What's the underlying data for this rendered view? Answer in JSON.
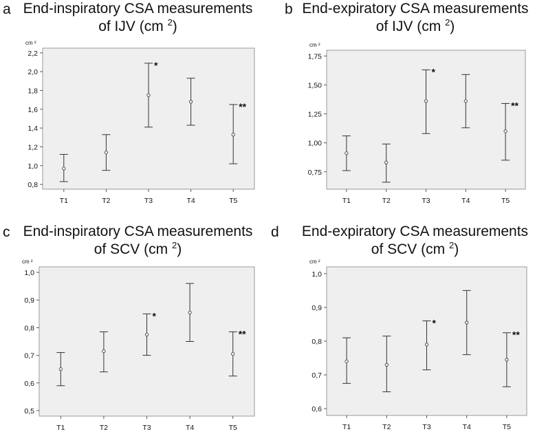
{
  "chart_data": [
    {
      "type": "errorbar",
      "panel_letter": "a",
      "title_line1": "End-inspiratory CSA measurements",
      "title_line2_pre": "of IJV (cm",
      "title_sup": "2",
      "title_line2_post": ")",
      "unit_label": "cm ²",
      "categories": [
        "T1",
        "T2",
        "T3",
        "T4",
        "T5"
      ],
      "means": [
        0.97,
        1.14,
        1.75,
        1.68,
        1.33
      ],
      "upper": [
        1.12,
        1.33,
        2.09,
        1.93,
        1.65
      ],
      "lower": [
        0.83,
        0.95,
        1.41,
        1.43,
        1.02
      ],
      "ylim": [
        0.75,
        2.25
      ],
      "yticks": [
        0.8,
        1.0,
        1.2,
        1.4,
        1.6,
        1.8,
        2.0,
        2.2
      ],
      "yticklabels": [
        "0,8",
        "1,0",
        "1,2",
        "1,4",
        "1,6",
        "1,8",
        "2,0",
        "2,2"
      ],
      "annotations": [
        {
          "category": "T3",
          "text": "*"
        },
        {
          "category": "T5",
          "text": "**"
        }
      ]
    },
    {
      "type": "errorbar",
      "panel_letter": "b",
      "title_line1": "End-expiratory CSA measurements",
      "title_line2_pre": "of IJV (cm",
      "title_sup": "2",
      "title_line2_post": ")",
      "unit_label": "cm ²",
      "categories": [
        "T1",
        "T2",
        "T3",
        "T4",
        "T5"
      ],
      "means": [
        0.91,
        0.83,
        1.36,
        1.36,
        1.1
      ],
      "upper": [
        1.06,
        0.99,
        1.63,
        1.59,
        1.34
      ],
      "lower": [
        0.76,
        0.66,
        1.08,
        1.13,
        0.85
      ],
      "ylim": [
        0.6,
        1.8
      ],
      "yticks": [
        0.75,
        1.0,
        1.25,
        1.5,
        1.75
      ],
      "yticklabels": [
        "0,75",
        "1,00",
        "1,25",
        "1,50",
        "1,75"
      ],
      "annotations": [
        {
          "category": "T3",
          "text": "*"
        },
        {
          "category": "T5",
          "text": "**"
        }
      ]
    },
    {
      "type": "errorbar",
      "panel_letter": "c",
      "title_line1": "End-inspiratory CSA measurements",
      "title_line2_pre": "of SCV (cm",
      "title_sup": "2",
      "title_line2_post": ")",
      "unit_label": "cm ²",
      "categories": [
        "T1",
        "T2",
        "T3",
        "T4",
        "T5"
      ],
      "means": [
        0.65,
        0.715,
        0.775,
        0.855,
        0.705
      ],
      "upper": [
        0.71,
        0.785,
        0.85,
        0.96,
        0.785
      ],
      "lower": [
        0.59,
        0.64,
        0.7,
        0.75,
        0.625
      ],
      "ylim": [
        0.48,
        1.02
      ],
      "yticks": [
        0.5,
        0.6,
        0.7,
        0.8,
        0.9,
        1.0
      ],
      "yticklabels": [
        "0,5",
        "0,6",
        "0,7",
        "0,8",
        "0,9",
        "1,0"
      ],
      "annotations": [
        {
          "category": "T3",
          "text": "*"
        },
        {
          "category": "T5",
          "text": "**"
        }
      ]
    },
    {
      "type": "errorbar",
      "panel_letter": "d",
      "title_line1": "End-expiratory CSA measurements",
      "title_line2_pre": "of SCV (cm",
      "title_sup": "2",
      "title_line2_post": ")",
      "unit_label": "cm ²",
      "categories": [
        "T1",
        "T2",
        "T3",
        "T4",
        "T5"
      ],
      "means": [
        0.74,
        0.73,
        0.79,
        0.855,
        0.745
      ],
      "upper": [
        0.81,
        0.815,
        0.86,
        0.95,
        0.825
      ],
      "lower": [
        0.675,
        0.65,
        0.715,
        0.76,
        0.665
      ],
      "ylim": [
        0.58,
        1.02
      ],
      "yticks": [
        0.6,
        0.7,
        0.8,
        0.9,
        1.0
      ],
      "yticklabels": [
        "0,6",
        "0,7",
        "0,8",
        "0,9",
        "1,0"
      ],
      "annotations": [
        {
          "category": "T3",
          "text": "*"
        },
        {
          "category": "T5",
          "text": "**"
        }
      ]
    }
  ]
}
